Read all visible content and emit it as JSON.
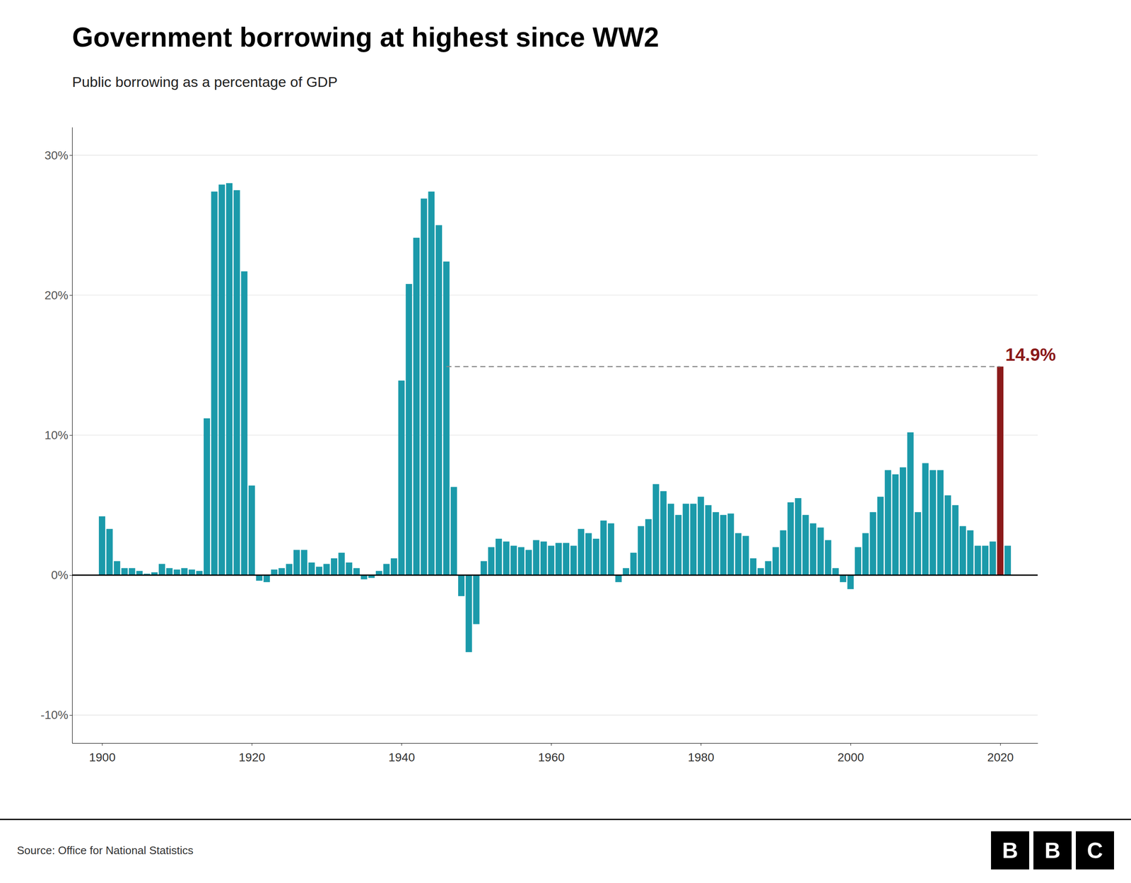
{
  "chart_data": {
    "type": "bar",
    "title": "Government borrowing at highest since WW2",
    "subtitle": "Public borrowing as a percentage of GDP",
    "source": "Source: Office for National Statistics",
    "logo": "BBC",
    "x": [
      1900,
      1901,
      1902,
      1903,
      1904,
      1905,
      1906,
      1907,
      1908,
      1909,
      1910,
      1911,
      1912,
      1913,
      1914,
      1915,
      1916,
      1917,
      1918,
      1919,
      1920,
      1921,
      1922,
      1923,
      1924,
      1925,
      1926,
      1927,
      1928,
      1929,
      1930,
      1931,
      1932,
      1933,
      1934,
      1935,
      1936,
      1937,
      1938,
      1939,
      1940,
      1941,
      1942,
      1943,
      1944,
      1945,
      1946,
      1947,
      1948,
      1949,
      1950,
      1951,
      1952,
      1953,
      1954,
      1955,
      1956,
      1957,
      1958,
      1959,
      1960,
      1961,
      1962,
      1963,
      1964,
      1965,
      1966,
      1967,
      1968,
      1969,
      1970,
      1971,
      1972,
      1973,
      1974,
      1975,
      1976,
      1977,
      1978,
      1979,
      1980,
      1981,
      1982,
      1983,
      1984,
      1985,
      1986,
      1987,
      1988,
      1989,
      1990,
      1991,
      1992,
      1993,
      1994,
      1995,
      1996,
      1997,
      1998,
      1999,
      2000,
      2001,
      2002,
      2003,
      2004,
      2005,
      2006,
      2007,
      2008,
      2009,
      2010,
      2011,
      2012,
      2013,
      2014,
      2015,
      2016,
      2017,
      2018,
      2019,
      2020,
      2021
    ],
    "values": [
      4.2,
      3.3,
      1.0,
      0.5,
      0.5,
      0.3,
      0.1,
      0.2,
      0.8,
      0.5,
      0.4,
      0.5,
      0.4,
      0.3,
      11.2,
      27.4,
      27.9,
      28.0,
      27.5,
      21.7,
      6.4,
      -0.4,
      -0.5,
      0.4,
      0.5,
      0.8,
      1.8,
      1.8,
      0.9,
      0.6,
      0.8,
      1.2,
      1.6,
      0.9,
      0.5,
      -0.3,
      -0.2,
      0.3,
      0.8,
      1.2,
      13.9,
      20.8,
      24.1,
      26.9,
      27.4,
      25.0,
      22.4,
      6.3,
      -1.5,
      -5.5,
      -3.5,
      1.0,
      2.0,
      2.6,
      2.4,
      2.1,
      2.0,
      1.8,
      2.5,
      2.4,
      2.1,
      2.3,
      2.3,
      2.1,
      3.3,
      3.0,
      2.6,
      3.9,
      3.7,
      -0.5,
      0.5,
      1.6,
      3.5,
      4.0,
      6.5,
      6.0,
      5.1,
      4.3,
      5.1,
      5.1,
      5.6,
      5.0,
      4.5,
      4.3,
      4.4,
      3.0,
      2.8,
      1.2,
      0.5,
      1.0,
      2.0,
      3.2,
      5.2,
      5.5,
      4.3,
      3.7,
      3.4,
      2.5,
      0.5,
      -0.5,
      -1.0,
      2.0,
      3.0,
      4.5,
      5.6,
      7.5,
      7.2,
      7.7,
      10.2,
      4.5,
      8.0,
      7.5,
      7.5,
      5.7,
      5.0,
      3.5,
      3.2,
      2.1,
      2.1,
      2.4,
      14.9,
      2.1
    ],
    "colors": [
      "#1b9aaa",
      "#1b9aaa",
      "#1b9aaa",
      "#1b9aaa",
      "#1b9aaa",
      "#1b9aaa",
      "#1b9aaa",
      "#1b9aaa",
      "#1b9aaa",
      "#1b9aaa",
      "#1b9aaa",
      "#1b9aaa",
      "#1b9aaa",
      "#1b9aaa",
      "#1b9aaa",
      "#1b9aaa",
      "#1b9aaa",
      "#1b9aaa",
      "#1b9aaa",
      "#1b9aaa",
      "#1b9aaa",
      "#1b9aaa",
      "#1b9aaa",
      "#1b9aaa",
      "#1b9aaa",
      "#1b9aaa",
      "#1b9aaa",
      "#1b9aaa",
      "#1b9aaa",
      "#1b9aaa",
      "#1b9aaa",
      "#1b9aaa",
      "#1b9aaa",
      "#1b9aaa",
      "#1b9aaa",
      "#1b9aaa",
      "#1b9aaa",
      "#1b9aaa",
      "#1b9aaa",
      "#1b9aaa",
      "#1b9aaa",
      "#1b9aaa",
      "#1b9aaa",
      "#1b9aaa",
      "#1b9aaa",
      "#1b9aaa",
      "#1b9aaa",
      "#1b9aaa",
      "#1b9aaa",
      "#1b9aaa",
      "#1b9aaa",
      "#1b9aaa",
      "#1b9aaa",
      "#1b9aaa",
      "#1b9aaa",
      "#1b9aaa",
      "#1b9aaa",
      "#1b9aaa",
      "#1b9aaa",
      "#1b9aaa",
      "#1b9aaa",
      "#1b9aaa",
      "#1b9aaa",
      "#1b9aaa",
      "#1b9aaa",
      "#1b9aaa",
      "#1b9aaa",
      "#1b9aaa",
      "#1b9aaa",
      "#1b9aaa",
      "#1b9aaa",
      "#1b9aaa",
      "#1b9aaa",
      "#1b9aaa",
      "#1b9aaa",
      "#1b9aaa",
      "#1b9aaa",
      "#1b9aaa",
      "#1b9aaa",
      "#1b9aaa",
      "#1b9aaa",
      "#1b9aaa",
      "#1b9aaa",
      "#1b9aaa",
      "#1b9aaa",
      "#1b9aaa",
      "#1b9aaa",
      "#1b9aaa",
      "#1b9aaa",
      "#1b9aaa",
      "#1b9aaa",
      "#1b9aaa",
      "#1b9aaa",
      "#1b9aaa",
      "#1b9aaa",
      "#1b9aaa",
      "#1b9aaa",
      "#1b9aaa",
      "#1b9aaa",
      "#1b9aaa",
      "#1b9aaa",
      "#1b9aaa",
      "#1b9aaa",
      "#1b9aaa",
      "#1b9aaa",
      "#1b9aaa",
      "#1b9aaa",
      "#1b9aaa",
      "#1b9aaa",
      "#1b9aaa",
      "#1b9aaa",
      "#1b9aaa",
      "#1b9aaa",
      "#1b9aaa",
      "#1b9aaa",
      "#1b9aaa",
      "#1b9aaa",
      "#1b9aaa",
      "#1b9aaa",
      "#1b9aaa",
      "#8b1a1a",
      "#1b9aaa"
    ],
    "xlim": [
      1896,
      2025
    ],
    "xticks": [
      1900,
      1920,
      1940,
      1960,
      1980,
      2000,
      2020
    ],
    "ylim": [
      -12,
      32
    ],
    "yticks": [
      {
        "value": -10,
        "label": "-10%"
      },
      {
        "value": 0,
        "label": "0%"
      },
      {
        "value": 10,
        "label": "10%"
      },
      {
        "value": 20,
        "label": "20%"
      },
      {
        "value": 30,
        "label": "30%"
      }
    ],
    "grid": true,
    "reference_line": {
      "y": 14.9,
      "x": [
        1946,
        2020
      ],
      "line_style": "dashed"
    },
    "annotations": [
      {
        "text": "14.9%",
        "y": 14.9,
        "color": "#8b1a1a"
      }
    ]
  }
}
